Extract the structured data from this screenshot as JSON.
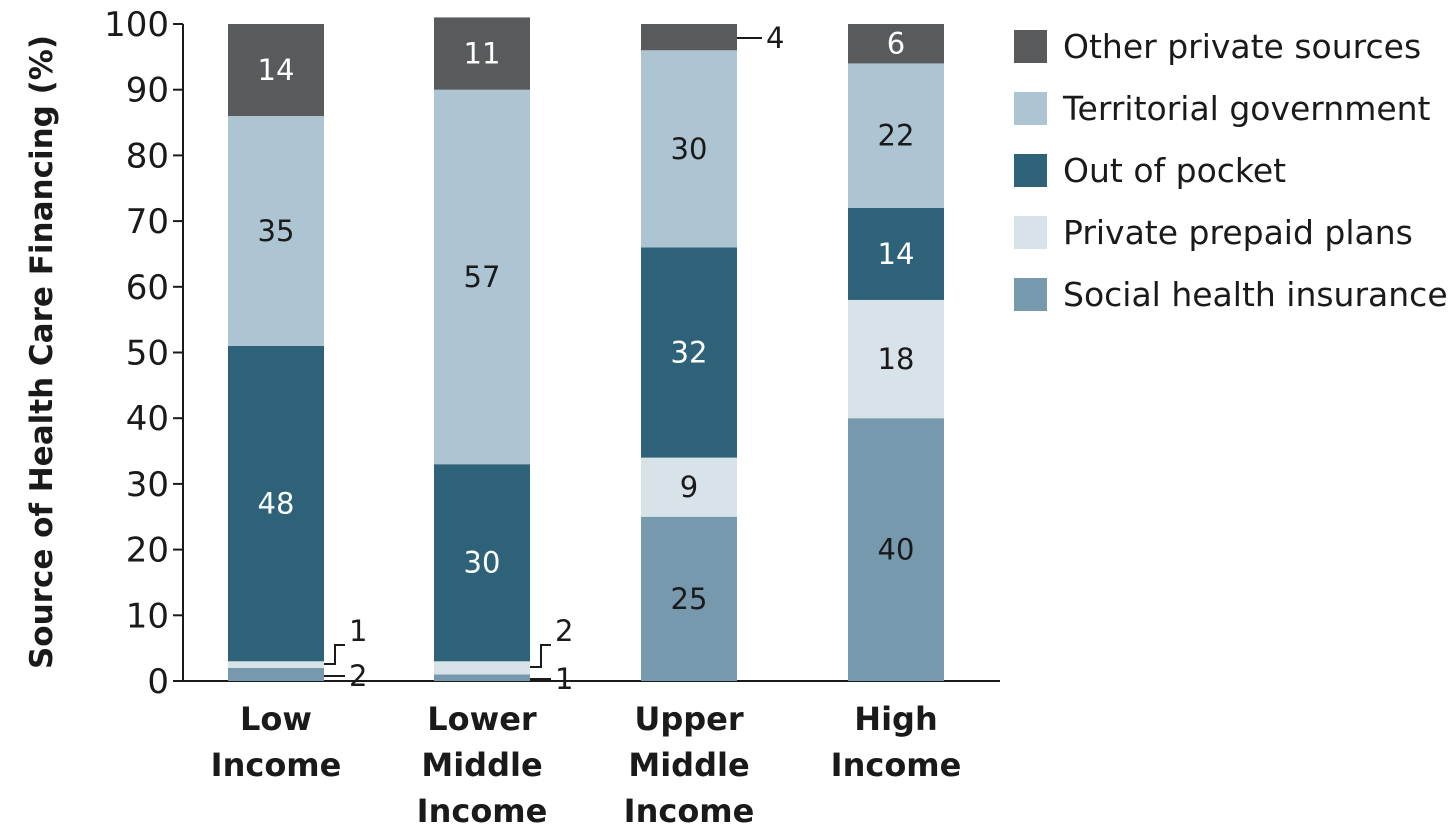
{
  "chart_data": {
    "type": "bar",
    "stacked": true,
    "ylabel": "Source of Health Care Financing (%)",
    "ylim": [
      0,
      100
    ],
    "yticks": [
      "0",
      "10",
      "20",
      "30",
      "40",
      "50",
      "60",
      "70",
      "80",
      "90",
      "100"
    ],
    "categories": [
      [
        "Low",
        "Income"
      ],
      [
        "Lower",
        "Middle",
        "Income"
      ],
      [
        "Upper",
        "Middle",
        "Income"
      ],
      [
        "High",
        "Income"
      ]
    ],
    "series": [
      {
        "name": "Social health insurance",
        "color": "#7699ad",
        "text_color": "#1a1a1a",
        "values": [
          2,
          1,
          25,
          40
        ],
        "labels": [
          "",
          "",
          "25",
          "40"
        ]
      },
      {
        "name": "Private prepaid plans",
        "color": "#d8e2e9",
        "text_color": "#1a1a1a",
        "values": [
          1,
          2,
          9,
          18
        ],
        "labels": [
          "",
          "",
          "9",
          "18"
        ]
      },
      {
        "name": "Out of pocket",
        "color": "#2e6278",
        "text_color": "#ffffff",
        "values": [
          48,
          30,
          32,
          14
        ],
        "labels": [
          "48",
          "30",
          "32",
          "14"
        ]
      },
      {
        "name": "Territorial government",
        "color": "#adc4d3",
        "text_color": "#1a1a1a",
        "values": [
          35,
          57,
          30,
          22
        ],
        "labels": [
          "35",
          "57",
          "30",
          "22"
        ]
      },
      {
        "name": "Other private sources",
        "color": "#585a5c",
        "text_color": "#ffffff",
        "values": [
          14,
          11,
          4,
          6
        ],
        "labels": [
          "14",
          "11",
          "",
          "6"
        ]
      }
    ],
    "legend_order": [
      "Other private sources",
      "Territorial government",
      "Out of pocket",
      "Private prepaid plans",
      "Social health insurance"
    ],
    "legend_position": "right",
    "callouts": [
      {
        "text": "1"
      },
      {
        "text": "2"
      },
      {
        "text": "2"
      },
      {
        "text": "1"
      },
      {
        "text": "4"
      }
    ],
    "grid": false
  }
}
